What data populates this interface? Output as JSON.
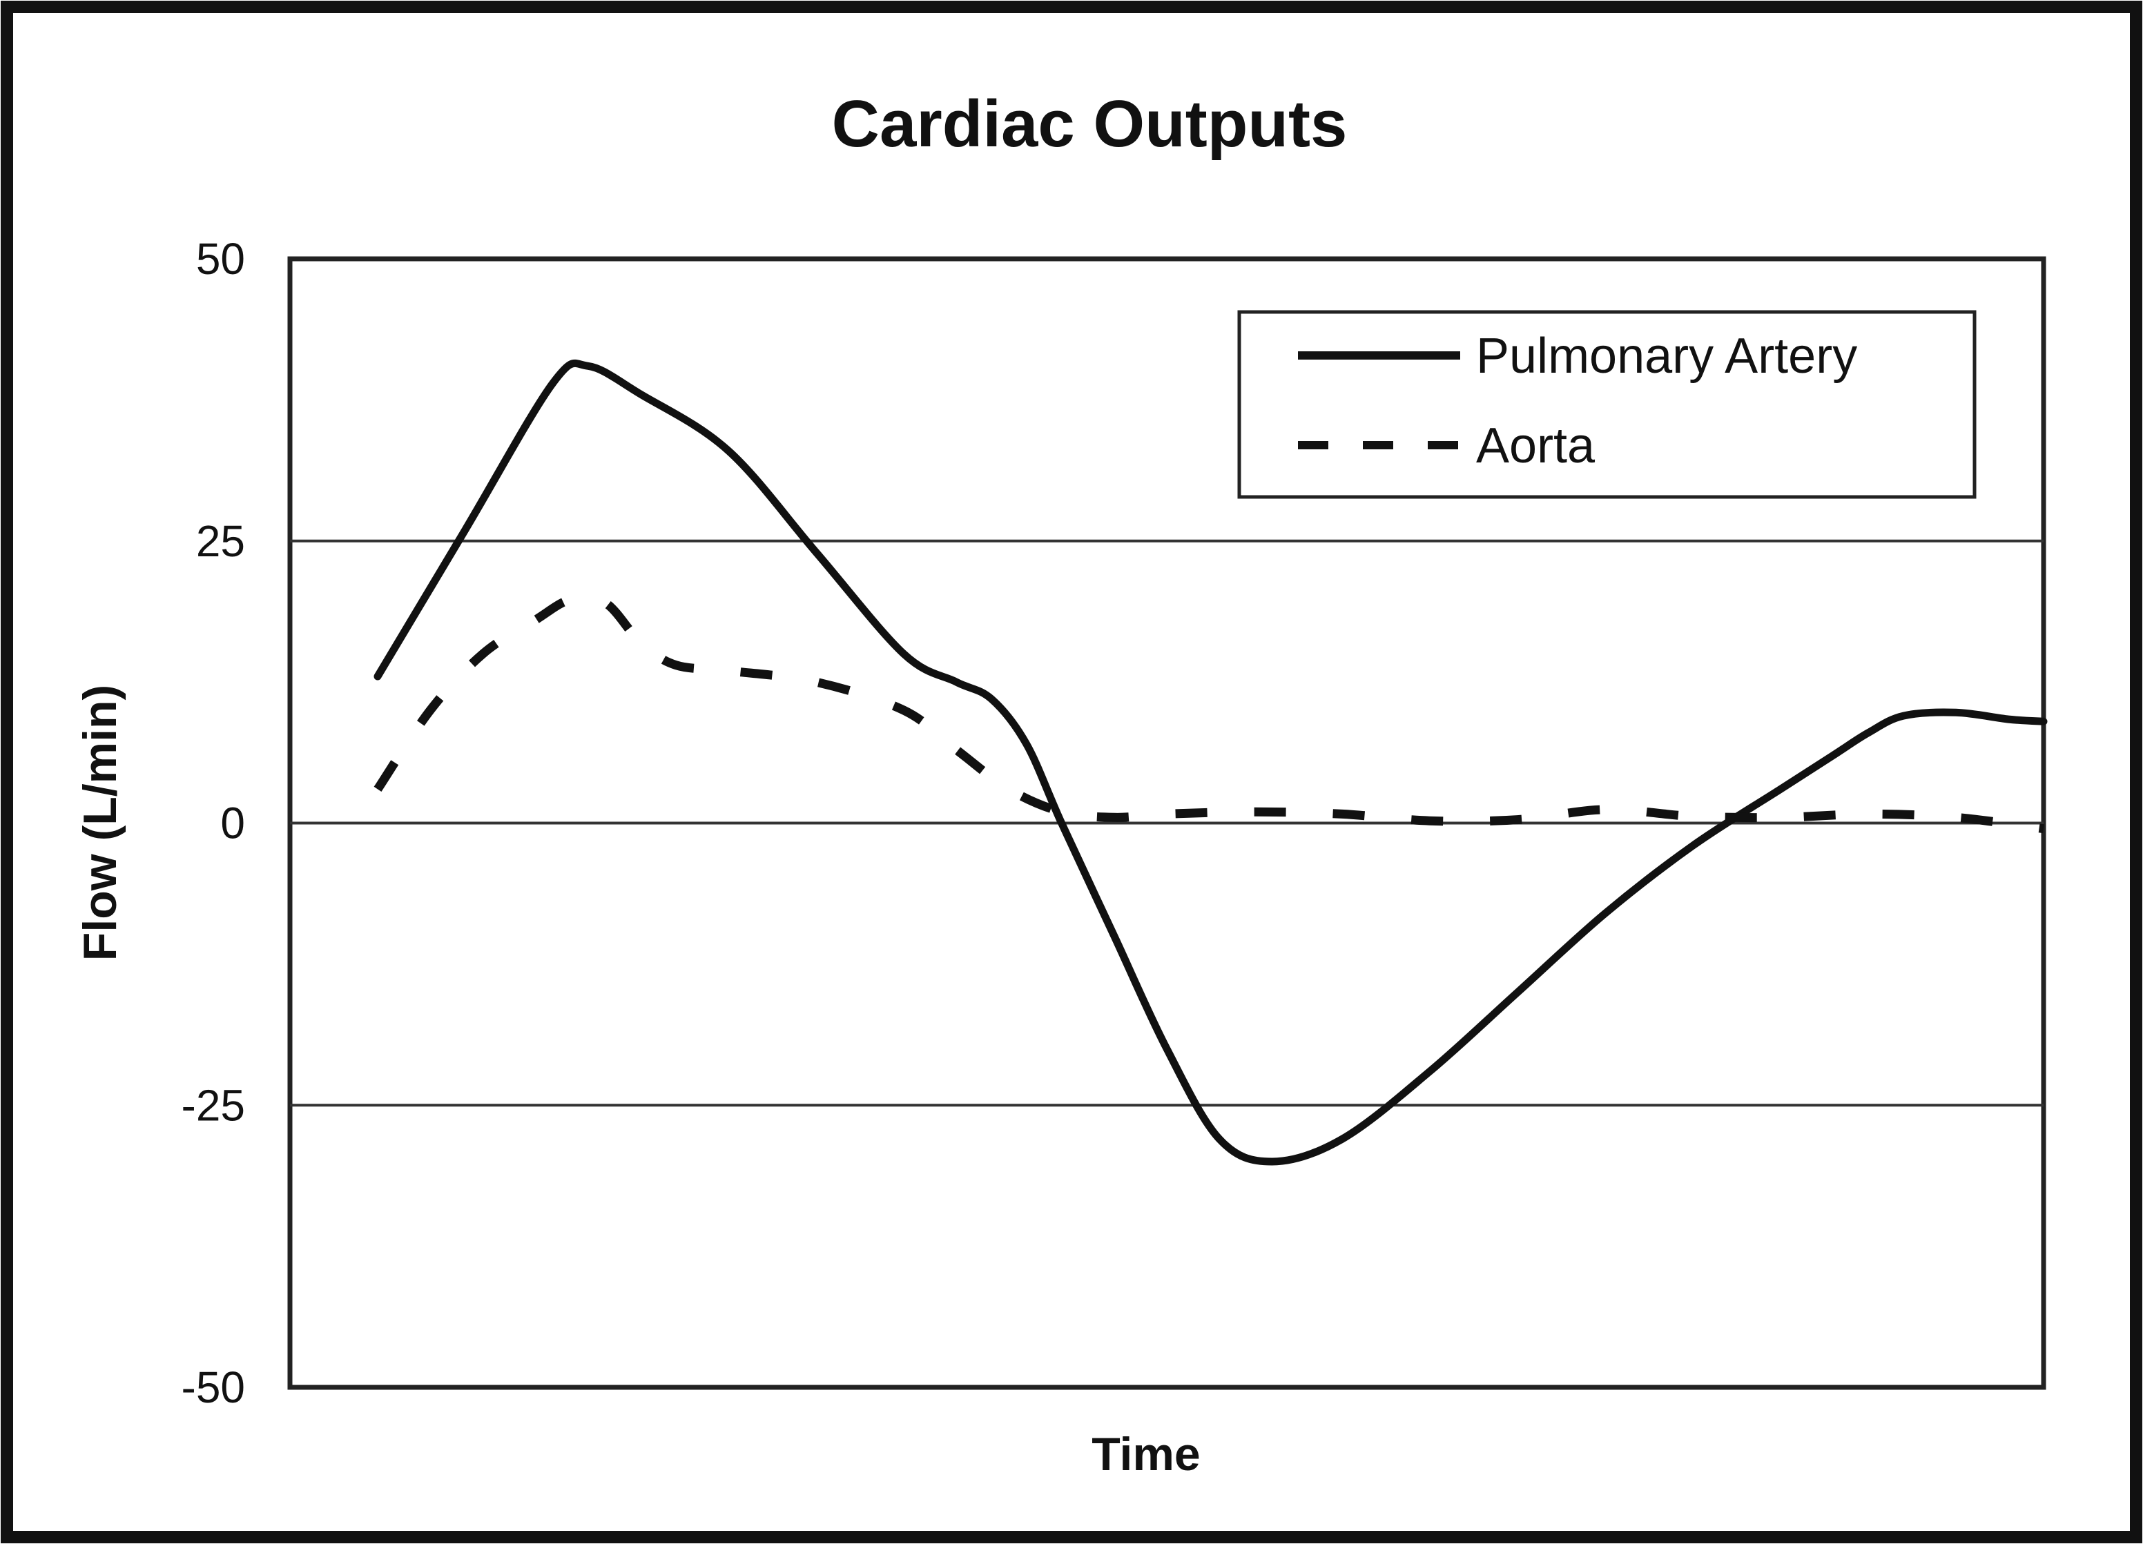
{
  "chart_data": {
    "type": "line",
    "title": "Cardiac Outputs",
    "xlabel": "Time",
    "ylabel": "Flow (L/min)",
    "ylim": [
      -50,
      50
    ],
    "yticks": [
      "50",
      "25",
      "0",
      "-25",
      "-50"
    ],
    "ytick_values": [
      50,
      25,
      0,
      -25,
      -50
    ],
    "xlim": [
      0,
      100
    ],
    "grid": "horizontal",
    "legend_position": "top-right",
    "series": [
      {
        "name": "Pulmonary Artery",
        "style": "solid",
        "color": "#111111",
        "x": [
          5,
          10,
          15,
          17,
          20,
          25,
          30,
          35,
          38,
          40,
          42,
          44,
          47,
          50,
          53,
          56,
          60,
          65,
          70,
          75,
          80,
          85,
          88,
          90,
          92,
          95,
          98,
          100
        ],
        "y": [
          13,
          26,
          39,
          40.5,
          38,
          33,
          24,
          15,
          12.5,
          11,
          7,
          0,
          -10,
          -20,
          -28,
          -30,
          -28,
          -22,
          -15,
          -8,
          -2,
          3,
          6,
          8,
          9.5,
          9.8,
          9.2,
          9
        ]
      },
      {
        "name": "Aorta",
        "style": "dashed",
        "color": "#111111",
        "x": [
          5,
          8,
          11,
          14,
          16,
          18,
          20,
          22,
          25,
          30,
          35,
          38,
          41,
          44,
          47,
          50,
          55,
          60,
          65,
          70,
          75,
          80,
          85,
          90,
          95,
          100
        ],
        "y": [
          3,
          10,
          15,
          18,
          19.8,
          19.5,
          16,
          14,
          13.5,
          12.5,
          10,
          6.5,
          3,
          1,
          0.5,
          0.8,
          1,
          0.8,
          0.2,
          0.3,
          1.2,
          0.6,
          0.5,
          0.8,
          0.5,
          -0.5
        ]
      }
    ]
  }
}
